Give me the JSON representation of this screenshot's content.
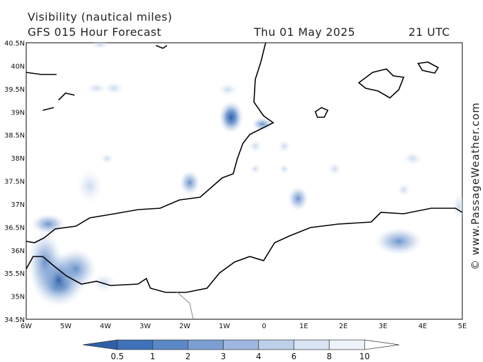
{
  "header": {
    "title": "Visibility (nautical miles)",
    "subtitle": "GFS 015 Hour Forecast",
    "date": "Thu 01 May 2025",
    "time": "21 UTC"
  },
  "map": {
    "lat_labels": [
      "40.5N",
      "40N",
      "39.5N",
      "39N",
      "38.5N",
      "38N",
      "37.5N",
      "37N",
      "36.5N",
      "36N",
      "35.5N",
      "35N",
      "34.5N"
    ],
    "lon_labels": [
      "6W",
      "5W",
      "4W",
      "3W",
      "2W",
      "1W",
      "0",
      "1E",
      "2E",
      "3E",
      "4E",
      "5E"
    ]
  },
  "colorbar": {
    "ticks": [
      0.5,
      1,
      2,
      3,
      4,
      6,
      8,
      10
    ],
    "colors": [
      "#2f5fa8",
      "#3f72b8",
      "#5a88c6",
      "#7b9fd2",
      "#9db7de",
      "#bcd0ea",
      "#d8e4f4",
      "#eef3fb",
      "#ffffff"
    ]
  },
  "credit": "© www.PassageWeather.com"
}
